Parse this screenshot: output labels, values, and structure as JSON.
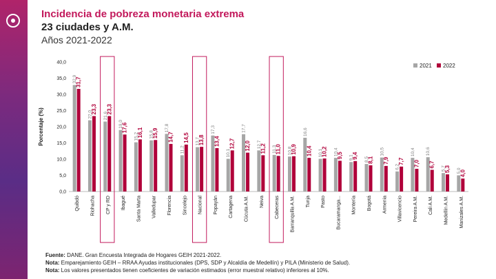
{
  "header": {
    "title": "Incidencia de pobreza monetaria extrema",
    "subtitle": "23 ciudades y A.M.",
    "years": "Años 2021-2022"
  },
  "colors": {
    "series_2021": "#a6a6a6",
    "series_2022": "#b0003a",
    "title": "#c2185b",
    "highlight_box": "#c2185b",
    "side_band": "#7b2a7e"
  },
  "chart_data": {
    "type": "bar",
    "title": "Incidencia de pobreza monetaria extrema",
    "xlabel": "",
    "ylabel": "Porcentaje (%)",
    "ylim": [
      0,
      40
    ],
    "yticks": [
      "0,0",
      "5,0",
      "10,0",
      "15,0",
      "20,0",
      "25,0",
      "30,0",
      "35,0",
      "40,0"
    ],
    "legend_position": "top-right",
    "categories": [
      "Quibdó",
      "Riohacha",
      "CP y RD",
      "Ibagué",
      "Santa Marta",
      "Valledupar",
      "Florencia",
      "Sincelejo",
      "Nacional",
      "Popayán",
      "Cartagena",
      "Cúcuta A.M.",
      "Neiva",
      "Cabeceras",
      "Barranquilla A.M.",
      "Tunja",
      "Pasto",
      "Bucaramanga...",
      "Montería",
      "Bogotá",
      "Armenia",
      "Villavicencio",
      "Pereira A.M.",
      "Cali A.M.",
      "Medellín A.M.",
      "Manizales A.M."
    ],
    "highlighted": [
      "CP y RD",
      "Nacional",
      "Cabeceras"
    ],
    "series": [
      {
        "name": "2021",
        "values": [
          32.9,
          22.0,
          21.6,
          19.0,
          15.2,
          15.8,
          17.8,
          11.2,
          13.7,
          17.3,
          10.1,
          17.7,
          12.7,
          11.3,
          10.8,
          16.6,
          10.1,
          10.4,
          9.1,
          8.5,
          10.5,
          6.2,
          10.4,
          10.6,
          5.7,
          5.0
        ],
        "labels": [
          "32,9",
          "22,0",
          "21,6",
          "19,0",
          "15,2",
          "15,8",
          "17,8",
          "11,2",
          "13,7",
          "17,3",
          "10,1",
          "17,7",
          "12,7",
          "11,3",
          "10,8",
          "16,6",
          "10,1",
          "10,4",
          "9,1",
          "8,5",
          "10,5",
          "6,2",
          "10,4",
          "10,6",
          "5,7",
          "5,0"
        ]
      },
      {
        "name": "2022",
        "values": [
          31.7,
          23.3,
          23.3,
          17.6,
          16.1,
          15.9,
          14.7,
          14.5,
          13.8,
          13.4,
          12.7,
          12.0,
          11.2,
          11.0,
          10.9,
          10.4,
          10.2,
          9.5,
          9.4,
          8.1,
          7.9,
          7.7,
          7.0,
          6.7,
          5.3,
          4.0
        ],
        "labels": [
          "31,7",
          "23,3",
          "23,3",
          "17,6",
          "16,1",
          "15,9",
          "14,7",
          "14,5",
          "13,8",
          "13,4",
          "12,7",
          "12,0",
          "11,2",
          "11,0",
          "10,9",
          "10,4",
          "10,2",
          "9,5",
          "9,4",
          "8,1",
          "7,9",
          "7,7",
          "7,0",
          "6,7",
          "5,3",
          "4,0"
        ]
      }
    ]
  },
  "notes": {
    "source_label": "Fuente:",
    "source_text": " DANE. Gran Encuesta Integrada de Hogares GEIH 2021-2022.",
    "note1_label": "Nota:",
    "note1_text": " Emparejamiento GEIH – RRAA Ayudas institucionales (DPS, SDP y Alcaldía de Medellín) y PILA (Ministerio de Salud).",
    "note2_label": "Nota:",
    "note2_text": " Los valores presentados tienen coeficientes de variación estimados (error muestral relativo) inferiores al 10%."
  }
}
